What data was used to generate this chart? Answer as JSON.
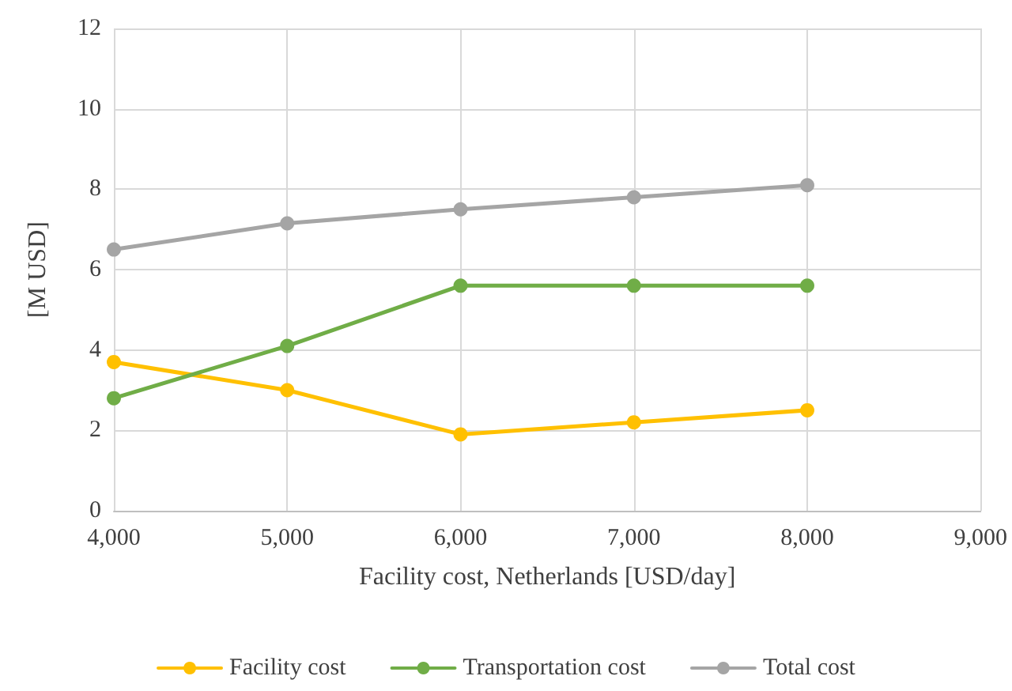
{
  "chart_data": {
    "type": "line",
    "xlabel": "Facility cost, Netherlands [USD/day]",
    "ylabel": "[M USD]",
    "x": [
      4000,
      5000,
      6000,
      7000,
      8000
    ],
    "series": [
      {
        "name": "Facility cost",
        "color": "#ffc000",
        "values": [
          3.7,
          3.0,
          1.9,
          2.2,
          2.5
        ]
      },
      {
        "name": "Transportation cost",
        "color": "#70ad47",
        "values": [
          2.8,
          4.1,
          5.6,
          5.6,
          5.6
        ]
      },
      {
        "name": "Total cost",
        "color": "#a5a5a5",
        "values": [
          6.5,
          7.15,
          7.5,
          7.8,
          8.1
        ]
      }
    ],
    "xlim": [
      4000,
      9000
    ],
    "xticks": [
      {
        "value": 4000,
        "label": "4,000"
      },
      {
        "value": 5000,
        "label": "5,000"
      },
      {
        "value": 6000,
        "label": "6,000"
      },
      {
        "value": 7000,
        "label": "7,000"
      },
      {
        "value": 8000,
        "label": "8,000"
      },
      {
        "value": 9000,
        "label": "9,000"
      }
    ],
    "ylim": [
      0,
      12
    ],
    "yticks": [
      0,
      2,
      4,
      6,
      8,
      10,
      12
    ],
    "grid": true,
    "legend": "bottom",
    "marker": "circle",
    "line_style": "solid"
  }
}
